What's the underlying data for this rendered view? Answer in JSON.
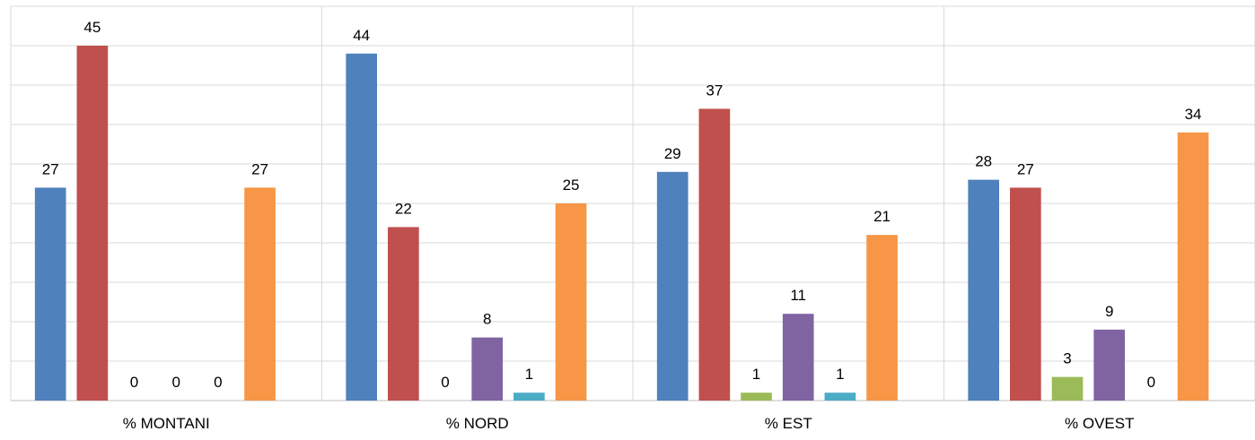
{
  "chart_data": {
    "type": "bar",
    "categories": [
      "% MONTANI",
      "% NORD",
      "% EST",
      "% OVEST"
    ],
    "series": [
      {
        "color": "#4F81BD",
        "values": [
          27,
          44,
          29,
          28
        ]
      },
      {
        "color": "#C0504D",
        "values": [
          45,
          22,
          37,
          27
        ]
      },
      {
        "color": "#9BBB59",
        "values": [
          0,
          0,
          1,
          3
        ]
      },
      {
        "color": "#8064A2",
        "values": [
          0,
          8,
          11,
          9
        ]
      },
      {
        "color": "#4BACC6",
        "values": [
          0,
          1,
          1,
          0
        ]
      },
      {
        "color": "#F79646",
        "values": [
          27,
          25,
          21,
          34
        ]
      }
    ],
    "ylim": [
      0,
      50
    ],
    "grid": true,
    "legend": "none",
    "xlabel": "",
    "ylabel": "",
    "title": ""
  }
}
